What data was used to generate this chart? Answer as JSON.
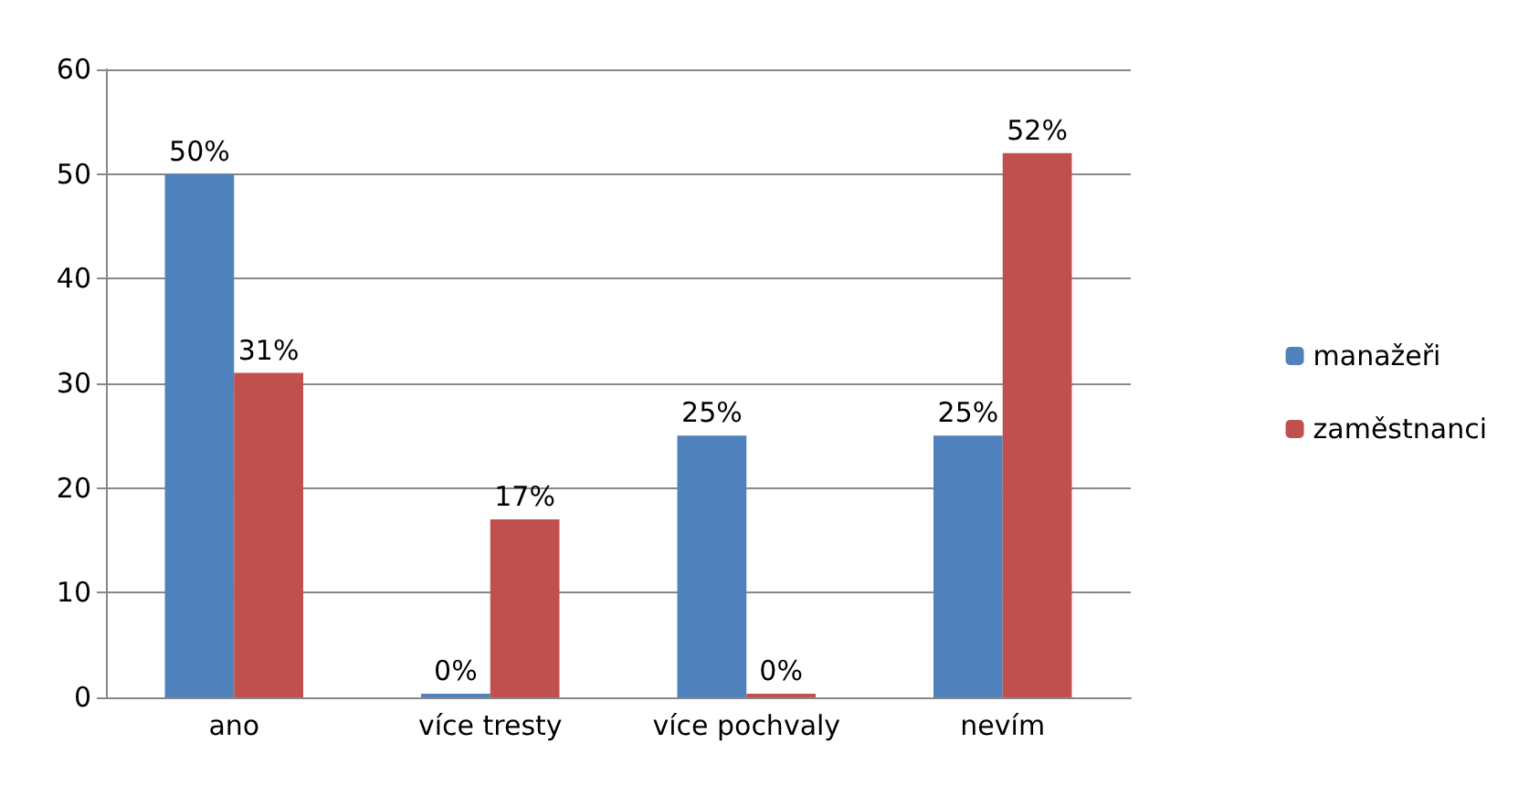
{
  "chart_data": {
    "type": "bar",
    "categories": [
      "ano",
      "více tresty",
      "více pochvaly",
      "nevím"
    ],
    "series": [
      {
        "name": "manažeři",
        "color": "#4f81bd",
        "values": [
          50,
          0,
          25,
          25
        ],
        "value_labels": [
          "50%",
          "0%",
          "25%",
          "25%"
        ]
      },
      {
        "name": "zaměstnanci",
        "color": "#c0504d",
        "values": [
          31,
          17,
          0,
          52
        ],
        "value_labels": [
          "31%",
          "17%",
          "0%",
          "52%"
        ]
      }
    ],
    "ylim": [
      0,
      60
    ],
    "yticks": [
      0,
      10,
      20,
      30,
      40,
      50,
      60
    ],
    "grid": "y",
    "legend": "right"
  }
}
